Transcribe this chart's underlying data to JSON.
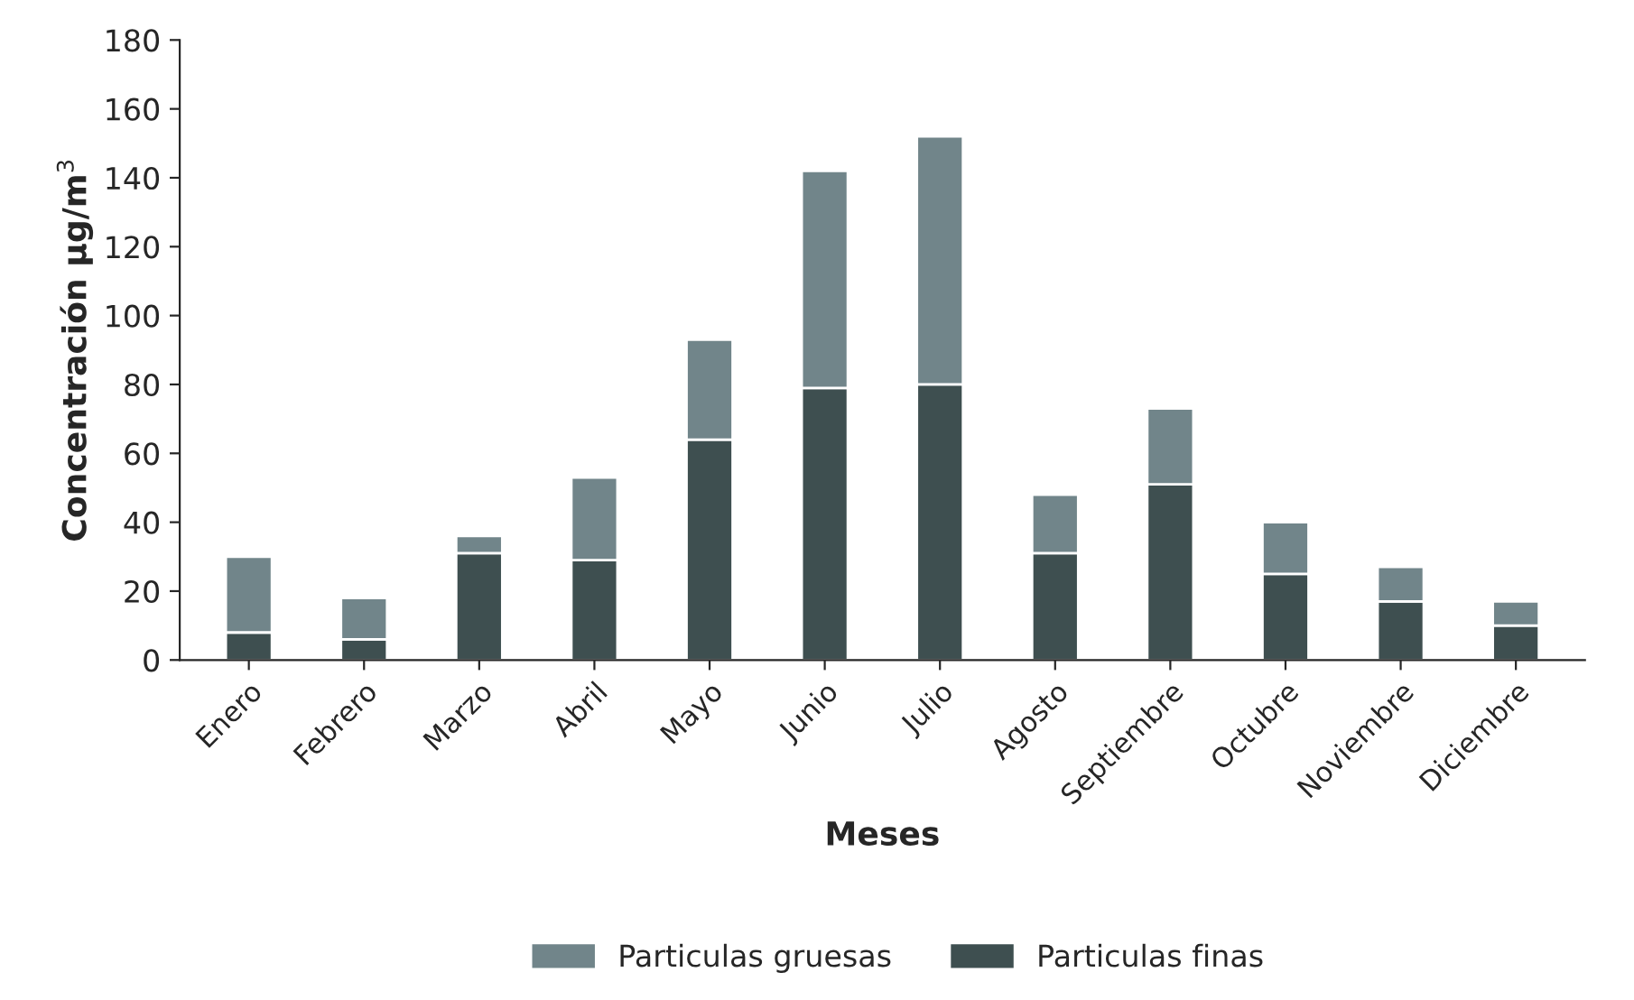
{
  "chart_data": {
    "type": "bar",
    "stacked": true,
    "xlabel": "Meses",
    "ylabel": "Concentración µg/m$^{3}$",
    "categories": [
      "Enero",
      "Febrero",
      "Marzo",
      "Abril",
      "Mayo",
      "Junio",
      "Julio",
      "Agosto",
      "Septiembre",
      "Octubre",
      "Noviembre",
      "Diciembre"
    ],
    "series": [
      {
        "name": "Particulas finas",
        "color": "#3e4f50",
        "values": [
          8,
          6,
          31,
          29,
          64,
          79,
          80,
          31,
          51,
          25,
          17,
          10
        ]
      },
      {
        "name": "Particulas gruesas",
        "color": "#71858a",
        "values": [
          22,
          12,
          5,
          24,
          29,
          63,
          72,
          17,
          22,
          15,
          10,
          7
        ]
      }
    ],
    "ylim": [
      0,
      180
    ],
    "yticks": [
      0,
      20,
      40,
      60,
      80,
      100,
      120,
      140,
      160,
      180
    ],
    "grid": false,
    "legend": "bottom"
  }
}
